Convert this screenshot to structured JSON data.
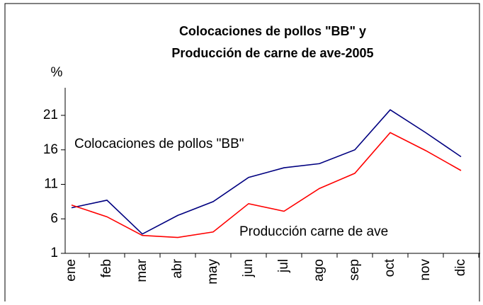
{
  "chart_data": {
    "type": "line",
    "title": [
      "Colocaciones de pollos \"BB\" y",
      "Producción de carne de ave-2005"
    ],
    "y_label": "%",
    "categories": [
      "ene",
      "feb",
      "mar",
      "abr",
      "may",
      "jun",
      "jul",
      "ago",
      "sep",
      "oct",
      "nov",
      "dic"
    ],
    "series": [
      {
        "name": "Colocaciones de pollos \"BB\"",
        "color": "#000080",
        "values": [
          7.6,
          8.7,
          3.8,
          6.5,
          8.5,
          12.0,
          13.4,
          14.0,
          16.0,
          21.8,
          18.5,
          15.0
        ]
      },
      {
        "name": "Producción carne de ave",
        "color": "#ff0000",
        "values": [
          8.0,
          6.3,
          3.6,
          3.3,
          4.1,
          8.2,
          7.1,
          10.4,
          12.6,
          18.5,
          15.9,
          13.0
        ]
      }
    ],
    "ylim": [
      1,
      25
    ],
    "yticks": [
      1,
      6,
      11,
      16,
      21
    ],
    "grid": false
  }
}
